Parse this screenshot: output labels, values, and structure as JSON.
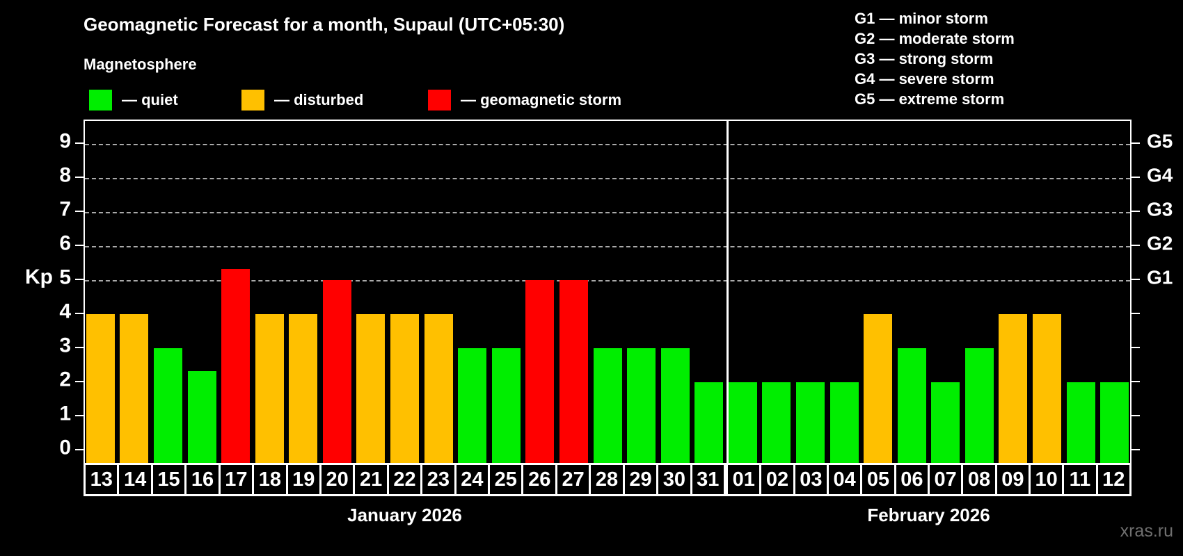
{
  "title": "Geomagnetic Forecast for a month, Supaul (UTC+05:30)",
  "subtitle": "Magnetosphere",
  "legend": {
    "items": [
      {
        "key": "quiet",
        "label": "— quiet"
      },
      {
        "key": "disturbed",
        "label": "— disturbed"
      },
      {
        "key": "storm",
        "label": "— geomagnetic storm"
      }
    ]
  },
  "g_legend": [
    "G1 — minor storm",
    "G2 — moderate storm",
    "G3 — strong storm",
    "G4 — severe storm",
    "G5 — extreme storm"
  ],
  "colors": {
    "quiet": "#00ee00",
    "disturbed": "#ffc000",
    "storm": "#ff0000",
    "axis": "#ffffff",
    "grid": "#aaaaaa",
    "watermark": "#6f6f6f"
  },
  "y_axis": {
    "label": "Kp",
    "ticks": [
      "0",
      "1",
      "2",
      "3",
      "4",
      "5",
      "6",
      "7",
      "8",
      "9"
    ]
  },
  "right_axis": {
    "labels": [
      {
        "kp": 5,
        "text": "G1"
      },
      {
        "kp": 6,
        "text": "G2"
      },
      {
        "kp": 7,
        "text": "G3"
      },
      {
        "kp": 8,
        "text": "G4"
      },
      {
        "kp": 9,
        "text": "G5"
      }
    ]
  },
  "months": [
    {
      "label": "January 2026",
      "days": 19
    },
    {
      "label": "February 2026",
      "days": 12
    }
  ],
  "watermark": "xras.ru",
  "chart_data": {
    "type": "bar",
    "title": "Geomagnetic Forecast for a month, Supaul (UTC+05:30)",
    "ylabel": "Kp",
    "ylim": [
      0,
      9
    ],
    "grid_levels": [
      5,
      6,
      7,
      8,
      9
    ],
    "legend_position": "top-left",
    "x_groups": [
      "January 2026",
      "February 2026"
    ],
    "series": [
      {
        "date": "13",
        "month": "January 2026",
        "kp": 4,
        "level": "disturbed"
      },
      {
        "date": "14",
        "month": "January 2026",
        "kp": 4,
        "level": "disturbed"
      },
      {
        "date": "15",
        "month": "January 2026",
        "kp": 3,
        "level": "quiet"
      },
      {
        "date": "16",
        "month": "January 2026",
        "kp": 2.33,
        "level": "quiet"
      },
      {
        "date": "17",
        "month": "January 2026",
        "kp": 5.33,
        "level": "storm"
      },
      {
        "date": "18",
        "month": "January 2026",
        "kp": 4,
        "level": "disturbed"
      },
      {
        "date": "19",
        "month": "January 2026",
        "kp": 4,
        "level": "disturbed"
      },
      {
        "date": "20",
        "month": "January 2026",
        "kp": 5,
        "level": "storm"
      },
      {
        "date": "21",
        "month": "January 2026",
        "kp": 4,
        "level": "disturbed"
      },
      {
        "date": "22",
        "month": "January 2026",
        "kp": 4,
        "level": "disturbed"
      },
      {
        "date": "23",
        "month": "January 2026",
        "kp": 4,
        "level": "disturbed"
      },
      {
        "date": "24",
        "month": "January 2026",
        "kp": 3,
        "level": "quiet"
      },
      {
        "date": "25",
        "month": "January 2026",
        "kp": 3,
        "level": "quiet"
      },
      {
        "date": "26",
        "month": "January 2026",
        "kp": 5,
        "level": "storm"
      },
      {
        "date": "27",
        "month": "January 2026",
        "kp": 5,
        "level": "storm"
      },
      {
        "date": "28",
        "month": "January 2026",
        "kp": 3,
        "level": "quiet"
      },
      {
        "date": "29",
        "month": "January 2026",
        "kp": 3,
        "level": "quiet"
      },
      {
        "date": "30",
        "month": "January 2026",
        "kp": 3,
        "level": "quiet"
      },
      {
        "date": "31",
        "month": "January 2026",
        "kp": 2,
        "level": "quiet"
      },
      {
        "date": "01",
        "month": "February 2026",
        "kp": 2,
        "level": "quiet"
      },
      {
        "date": "02",
        "month": "February 2026",
        "kp": 2,
        "level": "quiet"
      },
      {
        "date": "03",
        "month": "February 2026",
        "kp": 2,
        "level": "quiet"
      },
      {
        "date": "04",
        "month": "February 2026",
        "kp": 2,
        "level": "quiet"
      },
      {
        "date": "05",
        "month": "February 2026",
        "kp": 4,
        "level": "disturbed"
      },
      {
        "date": "06",
        "month": "February 2026",
        "kp": 3,
        "level": "quiet"
      },
      {
        "date": "07",
        "month": "February 2026",
        "kp": 2,
        "level": "quiet"
      },
      {
        "date": "08",
        "month": "February 2026",
        "kp": 3,
        "level": "quiet"
      },
      {
        "date": "09",
        "month": "February 2026",
        "kp": 4,
        "level": "disturbed"
      },
      {
        "date": "10",
        "month": "February 2026",
        "kp": 4,
        "level": "disturbed"
      },
      {
        "date": "11",
        "month": "February 2026",
        "kp": 2,
        "level": "quiet"
      },
      {
        "date": "12",
        "month": "February 2026",
        "kp": 2,
        "level": "quiet"
      }
    ]
  }
}
